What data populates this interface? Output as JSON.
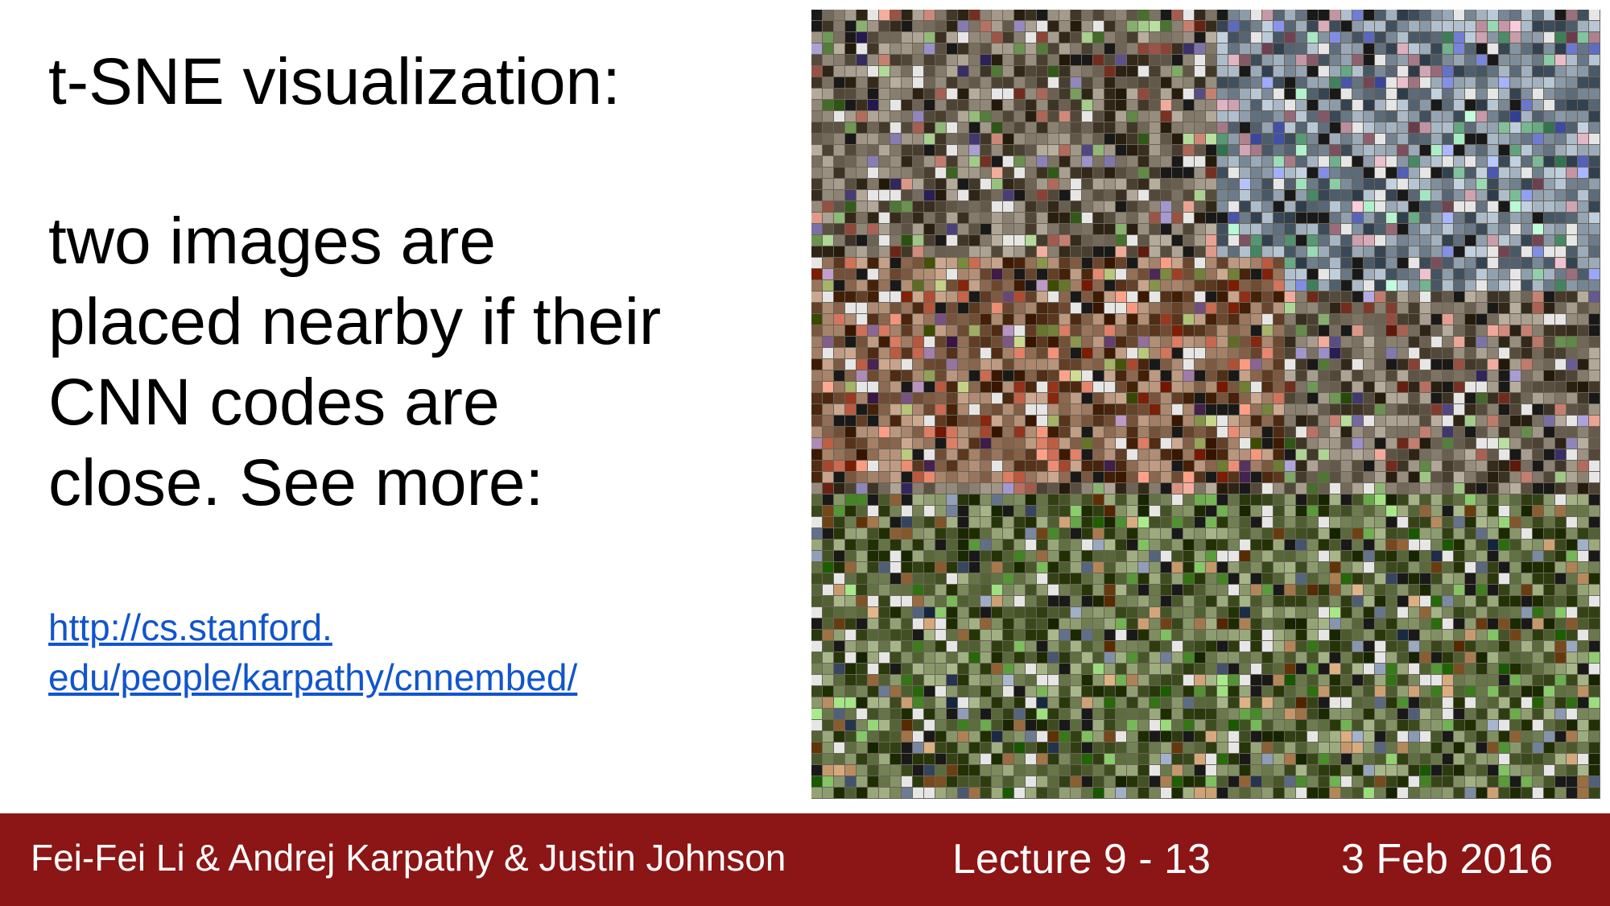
{
  "slide": {
    "title": "t-SNE visualization:",
    "body_lines": [
      "two images are",
      "placed nearby if their",
      "CNN codes are",
      "close. See more:"
    ],
    "link_lines": [
      "http://cs.stanford.",
      "edu/people/karpathy/cnnembed/"
    ],
    "image": {
      "description_icon": "tsne-image-mosaic"
    }
  },
  "footer": {
    "authors": "Fei-Fei Li & Andrej Karpathy & Justin Johnson",
    "lecture": "Lecture 9 - 13",
    "date": "3 Feb 2016"
  },
  "colors": {
    "footer_bg": "#8c1515",
    "link": "#1155cc",
    "text": "#000000"
  }
}
